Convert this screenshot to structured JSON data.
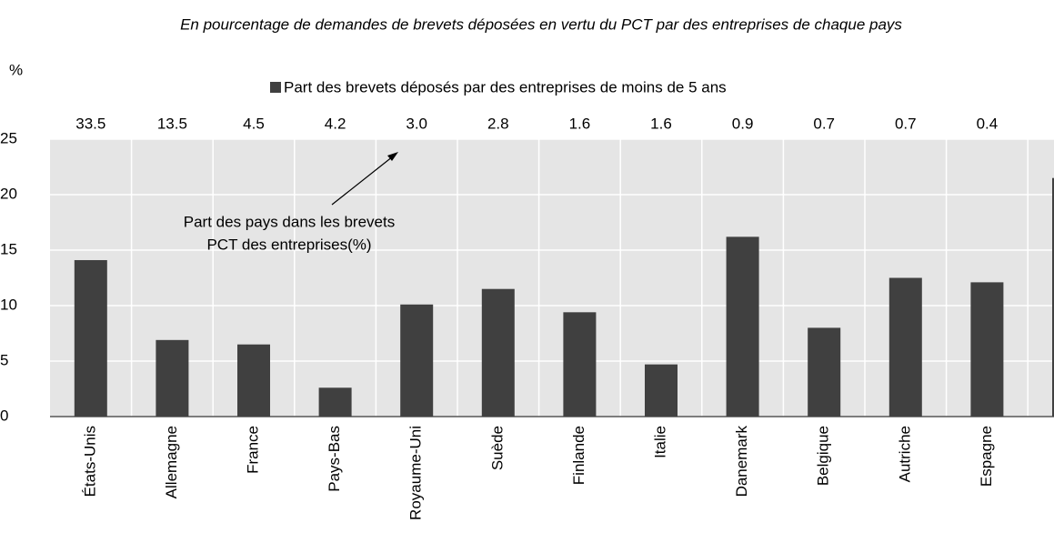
{
  "chart_data": {
    "type": "bar",
    "title": "En pourcentage de demandes de brevets déposées en vertu du PCT par des entreprises de chaque pays",
    "y_label": "%",
    "legend": "Part des brevets déposés par des entreprises de moins de 5 ans",
    "annotation": [
      "Part des pays dans les brevets",
      "PCT des entreprises(%)"
    ],
    "categories": [
      "États-Unis",
      "Allemagne",
      "France",
      "Pays-Bas",
      "Royaume-Uni",
      "Suède",
      "Finlande",
      "Italie",
      "Danemark",
      "Belgique",
      "Autriche",
      "Espagne",
      null
    ],
    "values": [
      14.1,
      6.9,
      6.5,
      2.6,
      10.1,
      11.5,
      9.4,
      4.7,
      16.2,
      8.0,
      12.5,
      12.1,
      21.5
    ],
    "color": "#404040",
    "share_values": [
      33.5,
      13.5,
      4.5,
      4.2,
      3.0,
      2.8,
      1.6,
      1.6,
      0.9,
      0.7,
      0.7,
      0.4,
      null
    ],
    "share_value_labels": [
      "33.5",
      "13.5",
      "4.5",
      "4.2",
      "3.0",
      "2.8",
      "1.6",
      "1.6",
      "0.9",
      "0.7",
      "0.7",
      "0.4",
      null
    ],
    "ylim": [
      0,
      25
    ],
    "yticks": [
      0,
      5,
      10,
      15,
      20,
      25
    ],
    "grid": true
  }
}
